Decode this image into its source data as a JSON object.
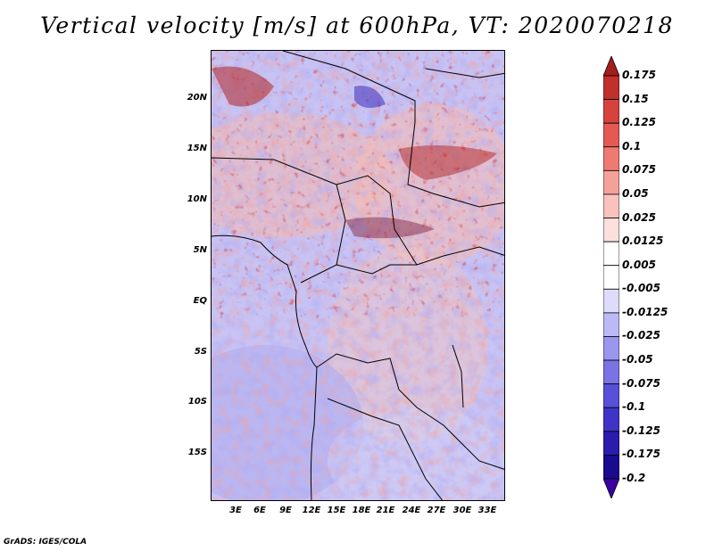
{
  "title": "Vertical velocity [m/s] at 600hPa, VT: 2020070218",
  "credit": "GrADS: IGES/COLA",
  "map": {
    "lat_labels": [
      "20N",
      "15N",
      "10N",
      "5N",
      "EQ",
      "5S",
      "10S",
      "15S"
    ],
    "lon_labels": [
      "3E",
      "6E",
      "9E",
      "12E",
      "15E",
      "18E",
      "21E",
      "24E",
      "27E",
      "30E",
      "33E"
    ]
  },
  "colorbar": {
    "levels": [
      "0.175",
      "0.15",
      "0.125",
      "0.1",
      "0.075",
      "0.05",
      "0.025",
      "0.0125",
      "0.005",
      "-0.005",
      "-0.0125",
      "-0.025",
      "-0.05",
      "-0.075",
      "-0.1",
      "-0.125",
      "-0.175",
      "-0.2"
    ],
    "colors": [
      "#a51c1c",
      "#c0302d",
      "#d6423c",
      "#e45a52",
      "#ee7a72",
      "#f4a19a",
      "#f8c3bd",
      "#fbe0dd",
      "#ffffff",
      "#ffffff",
      "#dedcfa",
      "#bdb9f5",
      "#9b96ee",
      "#7a73e6",
      "#5850d8",
      "#3f34c6",
      "#2a1cad",
      "#1a0a8e",
      "#3a00a0"
    ]
  }
}
